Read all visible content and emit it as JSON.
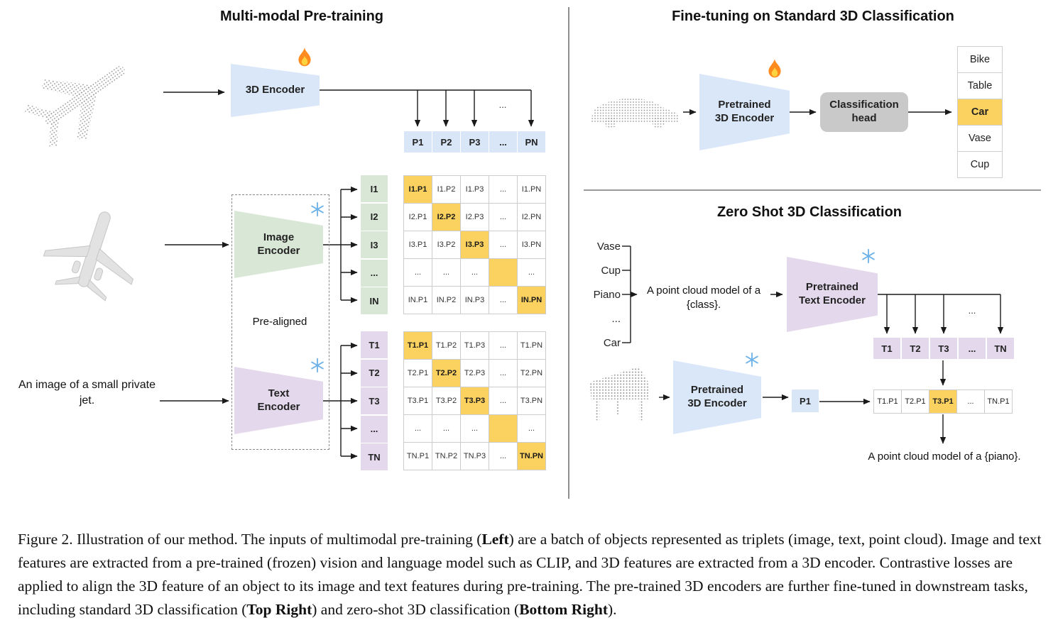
{
  "shared": {
    "ellipsis": "..."
  },
  "colors": {
    "blue": "#d9e7f8",
    "green": "#d9e8d6",
    "purple": "#e4d9ec",
    "orange": "#fbd25f",
    "gray_head": "#c9c9c9"
  },
  "icons": {
    "trainable": "fire-icon",
    "frozen": "snowflake-icon"
  },
  "left": {
    "title": "Multi-modal Pre-training",
    "encoder_3d": "3D Encoder",
    "image_encoder": "Image Encoder",
    "text_encoder": "Text Encoder",
    "pre_aligned": "Pre-aligned",
    "input_text": "An image of a small private jet.",
    "p_row": [
      "P1",
      "P2",
      "P3",
      "...",
      "PN"
    ],
    "i_col": [
      "I1",
      "I2",
      "I3",
      "...",
      "IN"
    ],
    "t_col": [
      "T1",
      "T2",
      "T3",
      "...",
      "TN"
    ],
    "i_matrix": [
      [
        "I1.P1",
        "I1.P2",
        "I1.P3",
        "...",
        "I1.PN"
      ],
      [
        "I2.P1",
        "I2.P2",
        "I2.P3",
        "...",
        "I2.PN"
      ],
      [
        "I3.P1",
        "I3.P2",
        "I3.P3",
        "...",
        "I3.PN"
      ],
      [
        "...",
        "...",
        "...",
        "",
        "..."
      ],
      [
        "IN.P1",
        "IN.P2",
        "IN.P3",
        "...",
        "IN.PN"
      ]
    ],
    "t_matrix": [
      [
        "T1.P1",
        "T1.P2",
        "T1.P3",
        "...",
        "T1.PN"
      ],
      [
        "T2.P1",
        "T2.P2",
        "T2.P3",
        "...",
        "T2.PN"
      ],
      [
        "T3.P1",
        "T3.P2",
        "T3.P3",
        "...",
        "T3.PN"
      ],
      [
        "...",
        "...",
        "...",
        "",
        "..."
      ],
      [
        "TN.P1",
        "TN.P2",
        "TN.P3",
        "...",
        "TN.PN"
      ]
    ]
  },
  "right_top": {
    "title": "Fine-tuning on Standard 3D Classification",
    "encoder": "Pretrained 3D Encoder",
    "head": "Classification head",
    "classes": [
      "Bike",
      "Table",
      "Car",
      "Vase",
      "Cup"
    ],
    "highlighted_class": "Car"
  },
  "right_bottom": {
    "title": "Zero Shot 3D Classification",
    "class_list": [
      "Vase",
      "Cup",
      "Piano",
      "...",
      "Car"
    ],
    "prompt": "A point cloud model of a {class}.",
    "text_encoder": "Pretrained Text Encoder",
    "encoder_3d": "Pretrained 3D Encoder",
    "t_row": [
      "T1",
      "T2",
      "T3",
      "...",
      "TN"
    ],
    "p_cell": "P1",
    "result_row": [
      "T1.P1",
      "T2.P1",
      "T3.P1",
      "...",
      "TN.P1"
    ],
    "highlighted_result": "T3.P1",
    "output_text": "A point cloud model of a {piano}."
  },
  "caption": {
    "segments": [
      {
        "text": "Figure 2. Illustration of our method. The inputs of multimodal pre-training (",
        "bold": false
      },
      {
        "text": "Left",
        "bold": true
      },
      {
        "text": ") are a batch of objects represented as triplets (image, text, point cloud). Image and text features are extracted from a pre-trained (frozen) vision and language model such as CLIP, and 3D features are extracted from a 3D encoder. Contrastive losses are applied to align the 3D feature of an object to its image and text features during pre-training. The pre-trained 3D encoders are further fine-tuned in downstream tasks, including standard 3D classification (",
        "bold": false
      },
      {
        "text": "Top Right",
        "bold": true
      },
      {
        "text": ") and zero-shot 3D classification (",
        "bold": false
      },
      {
        "text": "Bottom Right",
        "bold": true
      },
      {
        "text": ").",
        "bold": false
      }
    ]
  }
}
